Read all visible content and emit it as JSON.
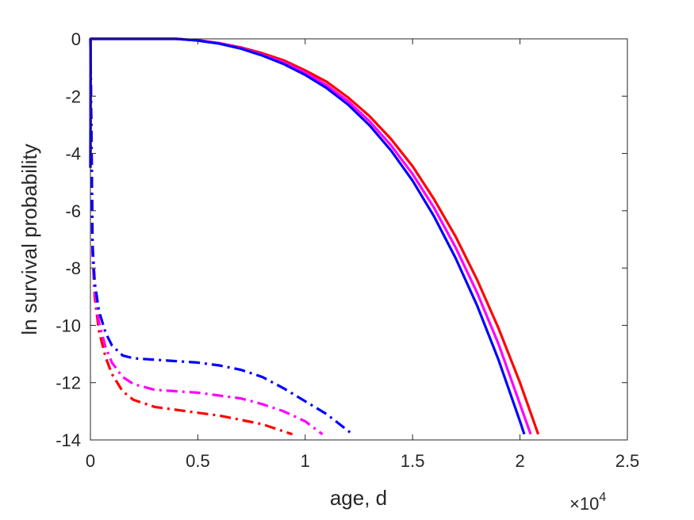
{
  "chart_data": {
    "type": "line",
    "xlabel": "age, d",
    "ylabel": "ln survival probability",
    "x_exponent_label": {
      "base": "×10",
      "exponent": "4"
    },
    "xlim": [
      0,
      25000
    ],
    "ylim": [
      -14,
      0
    ],
    "x_ticks": [
      0,
      5000,
      10000,
      15000,
      20000,
      25000
    ],
    "x_tick_labels": [
      "0",
      "0.5",
      "1",
      "1.5",
      "2",
      "2.5"
    ],
    "y_ticks": [
      0,
      -2,
      -4,
      -6,
      -8,
      -10,
      -12,
      -14
    ],
    "y_tick_labels": [
      "0",
      "-2",
      "-4",
      "-6",
      "-8",
      "-10",
      "-12",
      "-14"
    ],
    "grid": false,
    "series": [
      {
        "color": "#ff0000",
        "style": "solid",
        "x": [
          0,
          10,
          1000,
          2000,
          3000,
          4000,
          5000,
          6000,
          7000,
          8000,
          9000,
          10000,
          11000,
          12000,
          13000,
          14000,
          15000,
          16000,
          17000,
          18000,
          19000,
          20000,
          20850
        ],
        "y": [
          -4.5,
          0,
          0,
          0,
          0,
          0,
          -0.05,
          -0.15,
          -0.3,
          -0.5,
          -0.75,
          -1.1,
          -1.5,
          -2.05,
          -2.7,
          -3.5,
          -4.45,
          -5.6,
          -6.9,
          -8.4,
          -10.1,
          -12.0,
          -13.8
        ]
      },
      {
        "color": "#ff00ff",
        "style": "solid",
        "x": [
          0,
          10,
          1000,
          2000,
          3000,
          4000,
          5000,
          6000,
          7000,
          8000,
          9000,
          10000,
          11000,
          12000,
          13000,
          14000,
          15000,
          16000,
          17000,
          18000,
          19000,
          20000,
          20500
        ],
        "y": [
          -4.5,
          0,
          0,
          0,
          0,
          0,
          -0.05,
          -0.15,
          -0.32,
          -0.55,
          -0.82,
          -1.18,
          -1.62,
          -2.18,
          -2.88,
          -3.72,
          -4.72,
          -5.9,
          -7.28,
          -8.85,
          -10.65,
          -12.75,
          -13.8
        ]
      },
      {
        "color": "#0000ff",
        "style": "solid",
        "x": [
          0,
          10,
          1000,
          2000,
          3000,
          4000,
          5000,
          6000,
          7000,
          8000,
          9000,
          10000,
          11000,
          12000,
          13000,
          14000,
          15000,
          16000,
          17000,
          18000,
          19000,
          20000,
          20200
        ],
        "y": [
          -4.5,
          0,
          0,
          0,
          0,
          0,
          -0.06,
          -0.17,
          -0.34,
          -0.58,
          -0.88,
          -1.26,
          -1.72,
          -2.3,
          -3.02,
          -3.9,
          -4.95,
          -6.2,
          -7.65,
          -9.3,
          -11.2,
          -13.35,
          -13.8
        ]
      },
      {
        "color": "#ff0000",
        "style": "dashdot",
        "x": [
          0,
          100,
          200,
          400,
          700,
          1000,
          1500,
          2000,
          3000,
          4000,
          5000,
          6000,
          7000,
          8000,
          9000,
          9400
        ],
        "y": [
          0,
          -7.5,
          -9.0,
          -10.2,
          -11.1,
          -11.7,
          -12.3,
          -12.6,
          -12.85,
          -12.95,
          -13.05,
          -13.15,
          -13.3,
          -13.45,
          -13.7,
          -13.8
        ]
      },
      {
        "color": "#ff00ff",
        "style": "dashdot",
        "x": [
          0,
          100,
          200,
          400,
          700,
          1000,
          1500,
          2000,
          3000,
          4000,
          5000,
          6000,
          7000,
          8000,
          9000,
          10000,
          10800
        ],
        "y": [
          0,
          -7.4,
          -8.8,
          -9.9,
          -10.75,
          -11.3,
          -11.8,
          -12.05,
          -12.25,
          -12.3,
          -12.35,
          -12.45,
          -12.55,
          -12.75,
          -13.0,
          -13.35,
          -13.8
        ]
      },
      {
        "color": "#0000ff",
        "style": "dashdot",
        "x": [
          0,
          100,
          200,
          400,
          700,
          1000,
          1500,
          2000,
          3000,
          4000,
          5000,
          6000,
          7000,
          8000,
          9000,
          10000,
          11000,
          12200
        ],
        "y": [
          0,
          -7.2,
          -8.5,
          -9.5,
          -10.25,
          -10.7,
          -11.05,
          -11.15,
          -11.2,
          -11.25,
          -11.3,
          -11.4,
          -11.55,
          -11.8,
          -12.2,
          -12.65,
          -13.1,
          -13.8
        ]
      }
    ]
  }
}
